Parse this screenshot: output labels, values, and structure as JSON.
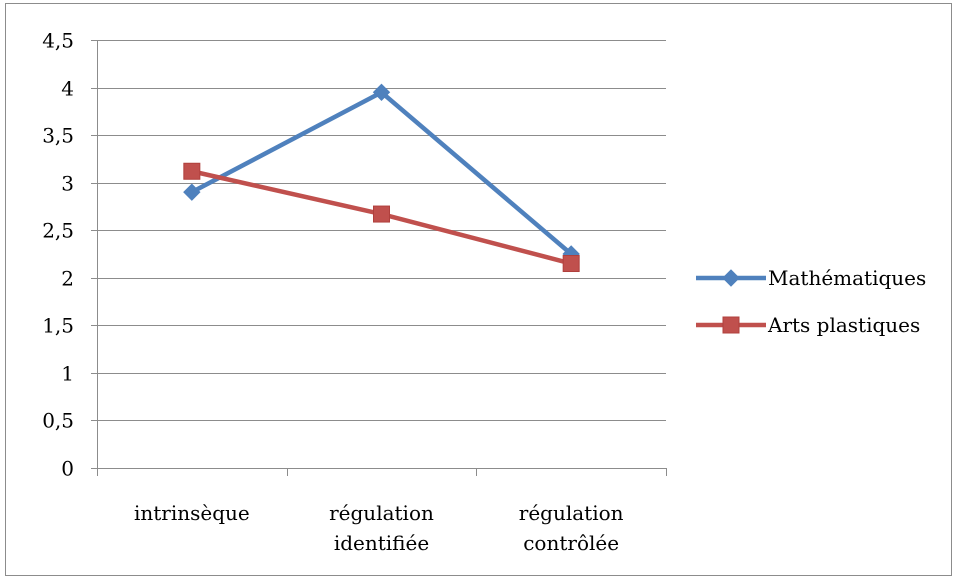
{
  "chart_data": {
    "type": "line",
    "title": "",
    "xlabel": "",
    "ylabel": "",
    "categories": [
      [
        "intrinsèque"
      ],
      [
        "régulation",
        "identifiée"
      ],
      [
        "régulation",
        "contrôlée"
      ]
    ],
    "series": [
      {
        "name": "Mathématiques",
        "values": [
          2.9,
          3.95,
          2.25
        ],
        "color": "#4F81BD",
        "marker": "diamond"
      },
      {
        "name": "Arts plastiques",
        "values": [
          3.12,
          2.67,
          2.15
        ],
        "color": "#C0504D",
        "marker": "square"
      }
    ],
    "ylim": [
      0,
      4.5
    ],
    "yticks": [
      "0",
      "0,5",
      "1",
      "1,5",
      "2",
      "2,5",
      "3",
      "3,5",
      "4",
      "4,5"
    ],
    "grid": true,
    "legend_position": "right"
  }
}
